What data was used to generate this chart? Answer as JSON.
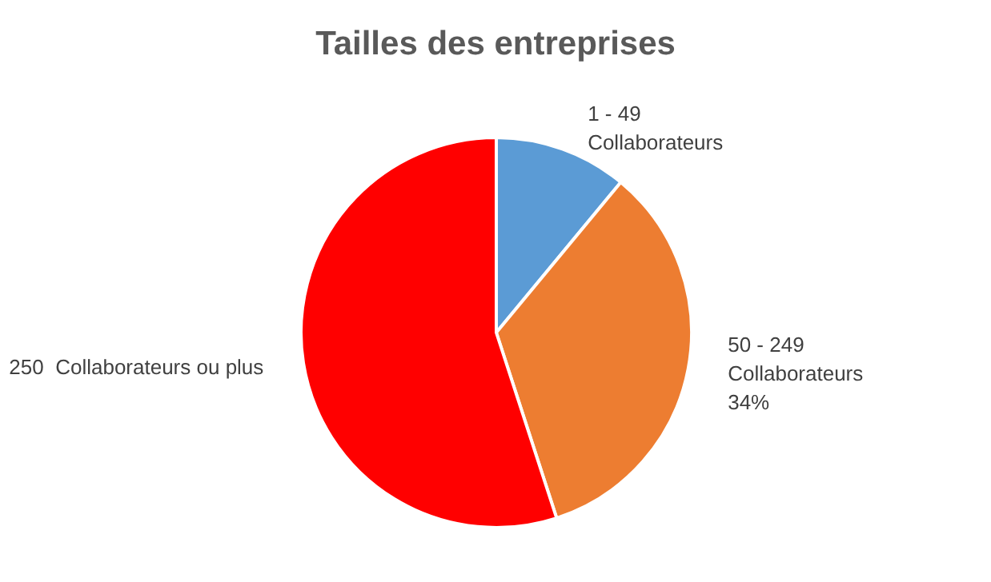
{
  "chart_data": {
    "type": "pie",
    "title": "Tailles des entreprises",
    "categories": [
      "1 - 49 Collaborateurs",
      "50 - 249 Collaborateurs",
      "250  Collaborateurs ou plus"
    ],
    "values": [
      11,
      34,
      55
    ],
    "colors": [
      "#5b9bd5",
      "#ed7d31",
      "#ff0000"
    ],
    "value_labels": [
      null,
      "34%",
      null
    ],
    "legend": false
  }
}
